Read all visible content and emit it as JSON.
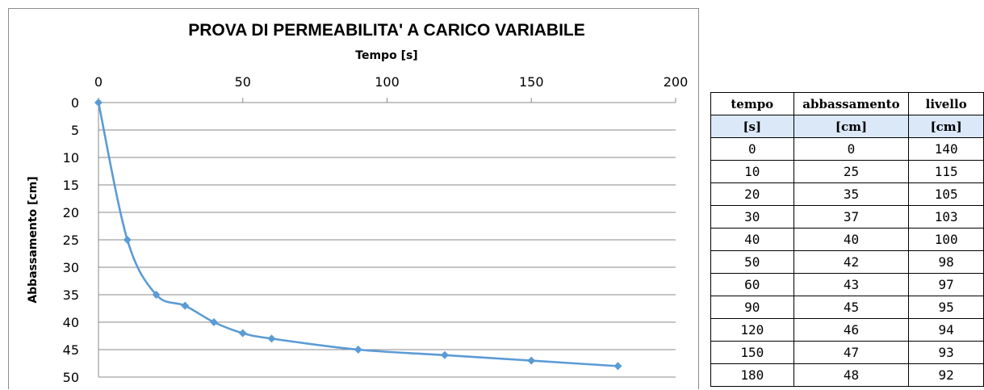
{
  "chart_data": {
    "type": "line",
    "title": "PROVA DI PERMEABILITA'  A CARICO VARIABILE",
    "xlabel": "Tempo [s]",
    "ylabel": "Abbassamento  [cm]",
    "xlim": [
      0,
      200
    ],
    "ylim": [
      0,
      50
    ],
    "y_inverted": true,
    "x_axis_position": "top",
    "x_ticks": [
      "0",
      "50",
      "100",
      "150",
      "200"
    ],
    "y_ticks": [
      "0",
      "5",
      "10",
      "15",
      "20",
      "25",
      "30",
      "35",
      "40",
      "45",
      "50"
    ],
    "grid": "horizontal",
    "line_style": "smoothed",
    "series": [
      {
        "color": "#5b9bd5",
        "marker": "diamond",
        "x": [
          0,
          10,
          20,
          30,
          40,
          50,
          60,
          90,
          120,
          150,
          180
        ],
        "values": [
          0,
          25,
          35,
          37,
          40,
          42,
          43,
          45,
          46,
          47,
          48
        ]
      }
    ]
  },
  "table": {
    "header": [
      "tempo",
      "abbassamento",
      "livello"
    ],
    "units": [
      "[s]",
      "[cm]",
      "[cm]"
    ],
    "rows": [
      [
        "0",
        "0",
        "140"
      ],
      [
        "10",
        "25",
        "115"
      ],
      [
        "20",
        "35",
        "105"
      ],
      [
        "30",
        "37",
        "103"
      ],
      [
        "40",
        "40",
        "100"
      ],
      [
        "50",
        "42",
        "98"
      ],
      [
        "60",
        "43",
        "97"
      ],
      [
        "90",
        "45",
        "95"
      ],
      [
        "120",
        "46",
        "94"
      ],
      [
        "150",
        "47",
        "93"
      ],
      [
        "180",
        "48",
        "92"
      ]
    ]
  }
}
